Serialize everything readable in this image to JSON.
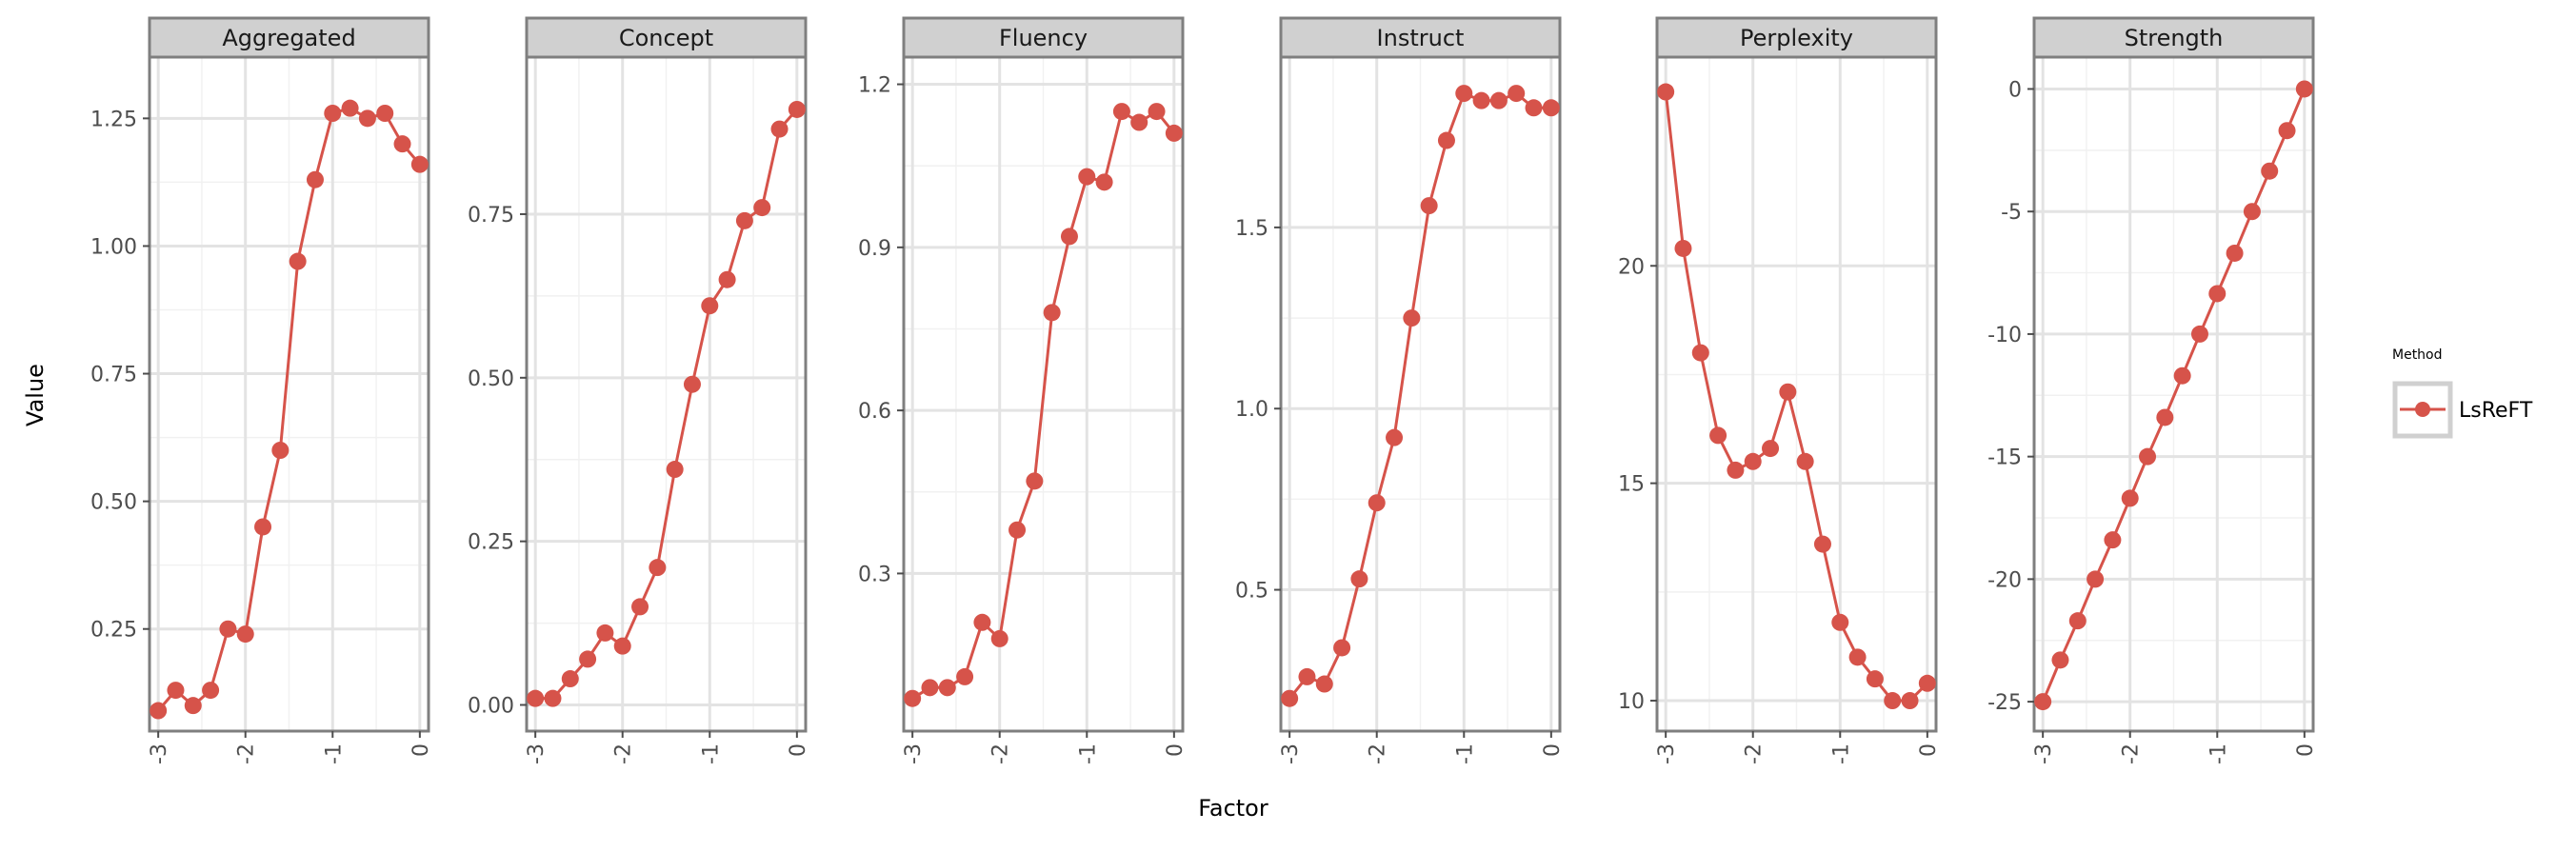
{
  "chart_data": {
    "type": "line",
    "xlabel": "Factor",
    "ylabel": "Value",
    "legend": {
      "title": "Method",
      "placement": "right",
      "entries": [
        {
          "name": "LsReFT",
          "color": "#d6534a"
        }
      ]
    },
    "x": [
      -3.0,
      -2.8,
      -2.6,
      -2.4,
      -2.2,
      -2.0,
      -1.8,
      -1.6,
      -1.4,
      -1.2,
      -1.0,
      -0.8,
      -0.6,
      -0.4,
      -0.2,
      0.0
    ],
    "x_ticks": [
      -3,
      -2,
      -1,
      0
    ],
    "x_tick_labels": [
      "-3",
      "-2",
      "-1",
      "0"
    ],
    "grid": true,
    "panels": [
      {
        "title": "Aggregated",
        "ylim": [
          0.05,
          1.37
        ],
        "y_ticks": [
          0.25,
          0.5,
          0.75,
          1.0,
          1.25
        ],
        "y_tick_labels": [
          "0.25",
          "0.50",
          "0.75",
          "1.00",
          "1.25"
        ],
        "series": [
          {
            "name": "LsReFT",
            "values": [
              0.09,
              0.13,
              0.1,
              0.13,
              0.25,
              0.24,
              0.45,
              0.6,
              0.97,
              1.13,
              1.26,
              1.27,
              1.25,
              1.26,
              1.2,
              1.16
            ]
          }
        ]
      },
      {
        "title": "Concept",
        "ylim": [
          -0.04,
          0.99
        ],
        "y_ticks": [
          0.0,
          0.25,
          0.5,
          0.75
        ],
        "y_tick_labels": [
          "0.00",
          "0.25",
          "0.50",
          "0.75"
        ],
        "series": [
          {
            "name": "LsReFT",
            "values": [
              0.01,
              0.01,
              0.04,
              0.07,
              0.11,
              0.09,
              0.15,
              0.21,
              0.36,
              0.49,
              0.61,
              0.65,
              0.74,
              0.76,
              0.88,
              0.91
            ]
          }
        ]
      },
      {
        "title": "Fluency",
        "ylim": [
          0.01,
          1.25
        ],
        "y_ticks": [
          0.3,
          0.6,
          0.9,
          1.2
        ],
        "y_tick_labels": [
          "0.3",
          "0.6",
          "0.9",
          "1.2"
        ],
        "series": [
          {
            "name": "LsReFT",
            "values": [
              0.07,
              0.09,
              0.09,
              0.11,
              0.21,
              0.18,
              0.38,
              0.47,
              0.78,
              0.92,
              1.03,
              1.02,
              1.15,
              1.13,
              1.15,
              1.11
            ]
          }
        ]
      },
      {
        "title": "Instruct",
        "ylim": [
          0.11,
          1.97
        ],
        "y_ticks": [
          0.5,
          1.0,
          1.5
        ],
        "y_tick_labels": [
          "0.5",
          "1.0",
          "1.5"
        ],
        "series": [
          {
            "name": "LsReFT",
            "values": [
              0.2,
              0.26,
              0.24,
              0.34,
              0.53,
              0.74,
              0.92,
              1.25,
              1.56,
              1.74,
              1.87,
              1.85,
              1.85,
              1.87,
              1.83,
              1.83
            ]
          }
        ]
      },
      {
        "title": "Perplexity",
        "ylim": [
          9.3,
          24.8
        ],
        "y_ticks": [
          10,
          15,
          20
        ],
        "y_tick_labels": [
          "10",
          "15",
          "20"
        ],
        "series": [
          {
            "name": "LsReFT",
            "values": [
              24.0,
              20.4,
              18.0,
              16.1,
              15.3,
              15.5,
              15.8,
              17.1,
              15.5,
              13.6,
              11.8,
              11.0,
              10.5,
              10.0,
              10.0,
              10.4
            ]
          }
        ]
      },
      {
        "title": "Strength",
        "ylim": [
          -26.2,
          1.3
        ],
        "y_ticks": [
          -25,
          -20,
          -15,
          -10,
          -5,
          0
        ],
        "y_tick_labels": [
          "-25",
          "-20",
          "-15",
          "-10",
          "-5",
          "0"
        ],
        "series": [
          {
            "name": "LsReFT",
            "values": [
              -25.0,
              -23.3,
              -21.7,
              -20.0,
              -18.4,
              -16.7,
              -15.0,
              -13.4,
              -11.7,
              -10.0,
              -8.35,
              -6.7,
              -5.0,
              -3.35,
              -1.7,
              0.0
            ]
          }
        ]
      }
    ]
  }
}
